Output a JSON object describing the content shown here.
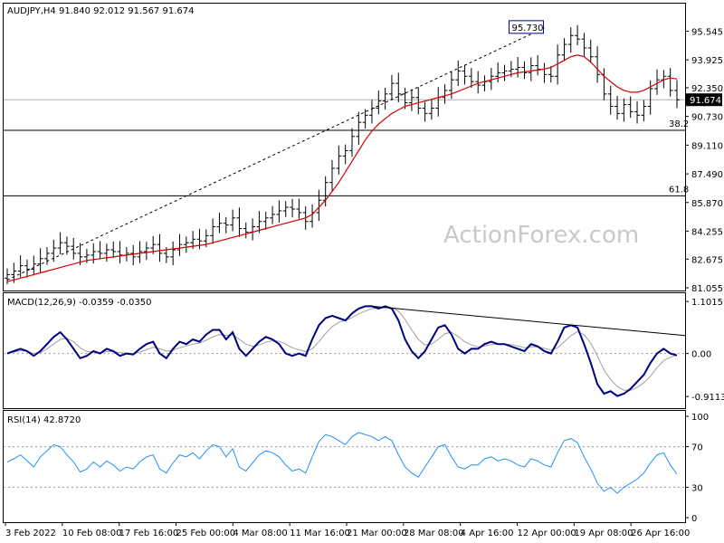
{
  "chart_data": [
    {
      "type": "line",
      "panel": "price",
      "title": "AUDJPY,H4  91.840 92.012 91.567 91.674",
      "last_price_label": "91.674",
      "last_price": 91.674,
      "peak_label": "95.730",
      "peak_value": 95.73,
      "ylim": [
        81.055,
        97.0
      ],
      "yticks": [
        "95.545",
        "93.925",
        "92.350",
        "90.730",
        "89.110",
        "87.490",
        "85.870",
        "84.255",
        "82.675",
        "81.055"
      ],
      "fib_levels": [
        {
          "name": "38.2",
          "value": 89.95
        },
        {
          "name": "61.8",
          "value": 86.25
        }
      ],
      "close": [
        81.8,
        82.0,
        82.3,
        82.1,
        82.4,
        82.7,
        83.0,
        83.3,
        83.6,
        83.4,
        83.0,
        82.8,
        82.9,
        83.1,
        83.0,
        83.2,
        83.1,
        82.9,
        83.0,
        82.8,
        83.1,
        83.3,
        83.5,
        83.0,
        82.8,
        83.2,
        83.5,
        83.6,
        83.8,
        83.7,
        84.0,
        84.5,
        84.7,
        84.6,
        85.0,
        84.4,
        84.2,
        84.5,
        84.8,
        85.0,
        85.2,
        85.4,
        85.6,
        85.5,
        85.3,
        84.8,
        85.3,
        86.0,
        87.0,
        87.8,
        88.5,
        88.8,
        89.6,
        90.4,
        90.8,
        91.2,
        91.6,
        92.0,
        92.6,
        92.0,
        91.5,
        91.8,
        91.2,
        90.9,
        91.2,
        91.8,
        92.2,
        92.8,
        93.3,
        93.0,
        92.7,
        92.5,
        92.7,
        93.0,
        93.2,
        93.3,
        93.4,
        93.5,
        93.2,
        93.6,
        93.4,
        93.1,
        93.0,
        94.2,
        94.8,
        95.3,
        95.1,
        94.6,
        94.1,
        93.1,
        92.0,
        91.3,
        90.9,
        91.4,
        91.0,
        90.8,
        91.3,
        92.3,
        92.8,
        93.0,
        92.2,
        91.67
      ],
      "ma_red": [
        81.4,
        81.5,
        81.6,
        81.7,
        81.8,
        81.9,
        82.0,
        82.1,
        82.2,
        82.3,
        82.4,
        82.5,
        82.6,
        82.65,
        82.7,
        82.75,
        82.8,
        82.85,
        82.9,
        82.95,
        83.0,
        83.05,
        83.1,
        83.15,
        83.2,
        83.25,
        83.3,
        83.35,
        83.4,
        83.45,
        83.5,
        83.6,
        83.7,
        83.8,
        83.9,
        84.0,
        84.1,
        84.2,
        84.3,
        84.4,
        84.5,
        84.6,
        84.7,
        84.8,
        84.9,
        85.0,
        85.2,
        85.6,
        86.0,
        86.5,
        87.0,
        87.6,
        88.2,
        88.8,
        89.4,
        89.9,
        90.3,
        90.6,
        90.9,
        91.1,
        91.3,
        91.4,
        91.5,
        91.6,
        91.7,
        91.8,
        91.9,
        92.0,
        92.15,
        92.3,
        92.45,
        92.6,
        92.7,
        92.8,
        92.9,
        93.0,
        93.1,
        93.2,
        93.25,
        93.3,
        93.35,
        93.4,
        93.5,
        93.7,
        93.9,
        94.1,
        94.2,
        94.1,
        93.8,
        93.4,
        93.0,
        92.7,
        92.4,
        92.2,
        92.1,
        92.1,
        92.2,
        92.4,
        92.6,
        92.8,
        92.9,
        92.85
      ],
      "trendline": [
        {
          "x": 0.0,
          "y": 81.5
        },
        {
          "x": 81.0,
          "y": 95.73
        }
      ],
      "x_tick_labels": [
        "3 Feb 2022",
        "10 Feb 08:00",
        "17 Feb 16:00",
        "25 Feb 00:00",
        "4 Mar 08:00",
        "11 Mar 16:00",
        "21 Mar 00:00",
        "28 Mar 08:00",
        "4 Apr 16:00",
        "12 Apr 00:00",
        "19 Apr 08:00",
        "26 Apr 16:00"
      ]
    },
    {
      "type": "line",
      "panel": "macd",
      "title": "MACD(12,26,9) -0.0359 -0.0350",
      "ylim": [
        -1.1,
        1.2
      ],
      "yticks": [
        "1.1015",
        "0.00",
        "-0.9113"
      ],
      "series": [
        {
          "values": [
            0.0,
            0.05,
            0.1,
            0.05,
            -0.05,
            0.05,
            0.2,
            0.35,
            0.45,
            0.3,
            0.1,
            -0.1,
            -0.05,
            0.05,
            0.0,
            0.1,
            0.05,
            -0.05,
            0.0,
            -0.02,
            0.1,
            0.2,
            0.25,
            0.0,
            -0.1,
            0.1,
            0.25,
            0.2,
            0.3,
            0.25,
            0.4,
            0.5,
            0.5,
            0.3,
            0.45,
            0.1,
            -0.05,
            0.1,
            0.25,
            0.35,
            0.3,
            0.2,
            0.0,
            -0.05,
            0.0,
            -0.05,
            0.3,
            0.6,
            0.75,
            0.8,
            0.75,
            0.7,
            0.85,
            0.95,
            1.0,
            1.0,
            0.95,
            1.0,
            0.95,
            0.7,
            0.3,
            0.05,
            -0.1,
            0.05,
            0.3,
            0.55,
            0.6,
            0.4,
            0.1,
            0.0,
            0.1,
            0.1,
            0.2,
            0.25,
            0.2,
            0.2,
            0.15,
            0.1,
            0.05,
            0.2,
            0.15,
            0.05,
            0.0,
            0.25,
            0.55,
            0.6,
            0.55,
            0.2,
            -0.2,
            -0.65,
            -0.85,
            -0.8,
            -0.9,
            -0.85,
            -0.75,
            -0.6,
            -0.45,
            -0.2,
            0.0,
            0.1,
            0.0,
            -0.04
          ]
        },
        {
          "values": [
            0.0,
            0.03,
            0.06,
            0.05,
            0.0,
            0.02,
            0.1,
            0.2,
            0.3,
            0.32,
            0.25,
            0.12,
            0.04,
            0.03,
            0.02,
            0.04,
            0.04,
            0.02,
            0.01,
            0.0,
            0.03,
            0.08,
            0.13,
            0.1,
            0.05,
            0.07,
            0.12,
            0.16,
            0.2,
            0.22,
            0.28,
            0.35,
            0.4,
            0.38,
            0.4,
            0.3,
            0.2,
            0.15,
            0.18,
            0.24,
            0.27,
            0.26,
            0.2,
            0.12,
            0.08,
            0.04,
            0.1,
            0.25,
            0.42,
            0.57,
            0.66,
            0.7,
            0.76,
            0.84,
            0.9,
            0.95,
            0.96,
            0.97,
            0.97,
            0.9,
            0.72,
            0.5,
            0.3,
            0.18,
            0.2,
            0.3,
            0.42,
            0.45,
            0.36,
            0.25,
            0.18,
            0.14,
            0.16,
            0.19,
            0.2,
            0.2,
            0.19,
            0.16,
            0.12,
            0.14,
            0.14,
            0.11,
            0.07,
            0.12,
            0.25,
            0.38,
            0.46,
            0.4,
            0.22,
            -0.05,
            -0.35,
            -0.55,
            -0.7,
            -0.78,
            -0.78,
            -0.72,
            -0.62,
            -0.48,
            -0.3,
            -0.15,
            -0.08,
            -0.035
          ]
        }
      ],
      "trendline": [
        {
          "x": 55.0,
          "y": 1.0
        },
        {
          "x": 101.0,
          "y": 0.38
        }
      ]
    },
    {
      "type": "line",
      "panel": "rsi",
      "title": "RSI(14) 42.8720",
      "ylim": [
        0,
        100
      ],
      "yticks": [
        "100",
        "70",
        "30",
        "0"
      ],
      "levels": [
        70,
        30
      ],
      "values": [
        55,
        58,
        62,
        56,
        50,
        60,
        66,
        72,
        70,
        62,
        55,
        45,
        48,
        55,
        50,
        56,
        52,
        46,
        50,
        48,
        55,
        60,
        62,
        48,
        44,
        54,
        62,
        60,
        64,
        58,
        66,
        72,
        70,
        60,
        68,
        50,
        46,
        54,
        62,
        66,
        64,
        60,
        52,
        46,
        48,
        44,
        60,
        75,
        82,
        80,
        76,
        72,
        80,
        84,
        82,
        80,
        76,
        80,
        76,
        62,
        50,
        44,
        40,
        50,
        60,
        70,
        72,
        60,
        50,
        48,
        52,
        52,
        58,
        60,
        56,
        58,
        56,
        52,
        50,
        58,
        56,
        52,
        50,
        64,
        76,
        78,
        74,
        60,
        48,
        34,
        26,
        30,
        24,
        30,
        34,
        38,
        44,
        54,
        62,
        64,
        52,
        42.87
      ]
    }
  ],
  "watermark": "ActionForex.com"
}
